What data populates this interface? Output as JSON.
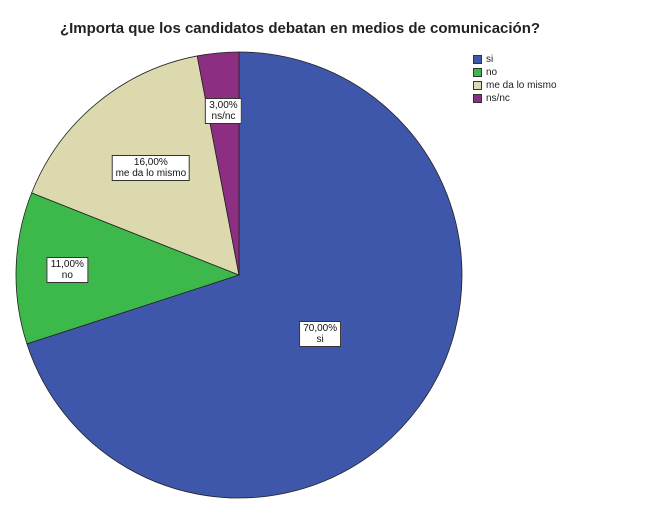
{
  "chart_data": {
    "type": "pie",
    "title": "¿Importa que los candidatos debatan en medios de comunicación?",
    "categories": [
      "si",
      "no",
      "me da lo mismo",
      "ns/nc"
    ],
    "values": [
      70.0,
      11.0,
      16.0,
      3.0
    ],
    "value_labels": [
      "70,00%",
      "11,00%",
      "16,00%",
      "3,00%"
    ],
    "colors": [
      "#3f57aa",
      "#3db84a",
      "#ddd9ae",
      "#8c2f82"
    ],
    "legend": {
      "position": "top-right",
      "entries": [
        "si",
        "no",
        "me da lo mismo",
        "ns/nc"
      ]
    },
    "start": "12 o'clock",
    "direction": "clockwise"
  }
}
